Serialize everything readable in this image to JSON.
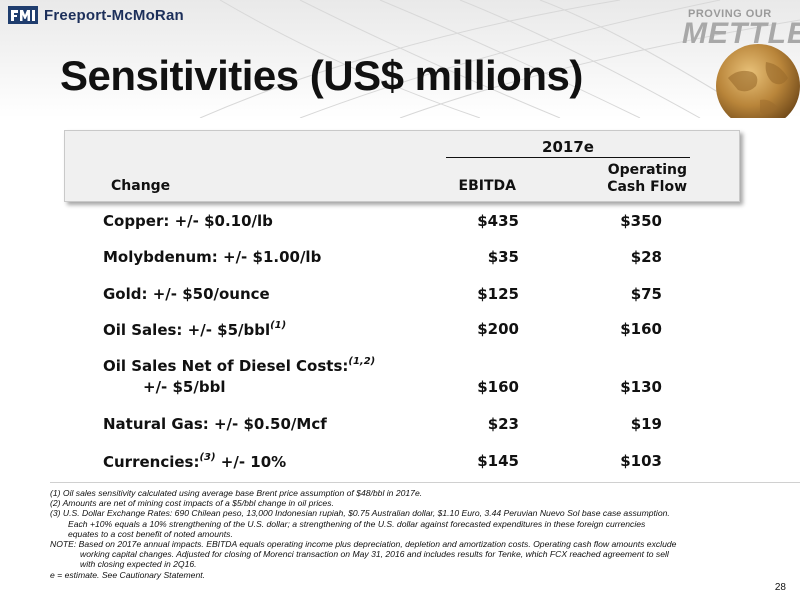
{
  "header": {
    "logo_text": "Freeport-McMoRan",
    "slogan_top": "PROVING OUR",
    "slogan_main": "METTLE",
    "title": "Sensitivities (US$ millions)"
  },
  "table": {
    "group_header": "2017e",
    "col_change": "Change",
    "col_ebitda": "EBITDA",
    "col_ocf_line1": "Operating",
    "col_ocf_line2": "Cash Flow",
    "rows": [
      {
        "label": "Copper: +/- $0.10/lb",
        "ebitda": "$435",
        "ocf": "$350"
      },
      {
        "label": "Molybdenum: +/- $1.00/lb",
        "ebitda": "$35",
        "ocf": "$28"
      },
      {
        "label": "Gold: +/- $50/ounce",
        "ebitda": "$125",
        "ocf": "$75"
      },
      {
        "label": "Oil Sales: +/- $5/bbl",
        "sup": "(1)",
        "ebitda": "$200",
        "ocf": "$160"
      },
      {
        "label": "Oil Sales Net of Diesel Costs:",
        "sup": "(1,2)",
        "sublabel": "+/- $5/bbl",
        "ebitda": "$160",
        "ocf": "$130"
      },
      {
        "label": "Natural Gas: +/- $0.50/Mcf",
        "ebitda": "$23",
        "ocf": "$19"
      },
      {
        "label": "Currencies:",
        "sup": "(3)",
        "label_after": " +/- 10%",
        "ebitda": "$145",
        "ocf": "$103"
      }
    ]
  },
  "notes": {
    "n1": "(1) Oil sales sensitivity calculated using average base Brent price assumption of $48/bbl in 2017e.",
    "n2": "(2) Amounts are net of mining cost impacts of a $5/bbl change in oil prices.",
    "n3": "(3) U.S. Dollar Exchange Rates: 690 Chilean peso, 13,000 Indonesian rupiah, $0.75 Australian dollar, $1.10 Euro, 3.44 Peruvian Nuevo Sol base case assumption.",
    "n3b": "Each +10% equals a 10% strengthening of the U.S. dollar; a strengthening of the U.S. dollar against forecasted expenditures in these foreign currencies",
    "n3c": "equates to a cost benefit of noted amounts.",
    "note": "NOTE: Based on 2017e annual impacts. EBITDA equals operating income plus depreciation, depletion and amortization costs. Operating cash flow amounts exclude",
    "note_b": "working capital changes. Adjusted for closing of Morenci transaction on May 31, 2016 and includes results for Tenke, which FCX reached agreement to sell",
    "note_c": "with closing expected in 2Q16.",
    "estimate": "e = estimate. See Cautionary Statement."
  },
  "page_number": "28"
}
